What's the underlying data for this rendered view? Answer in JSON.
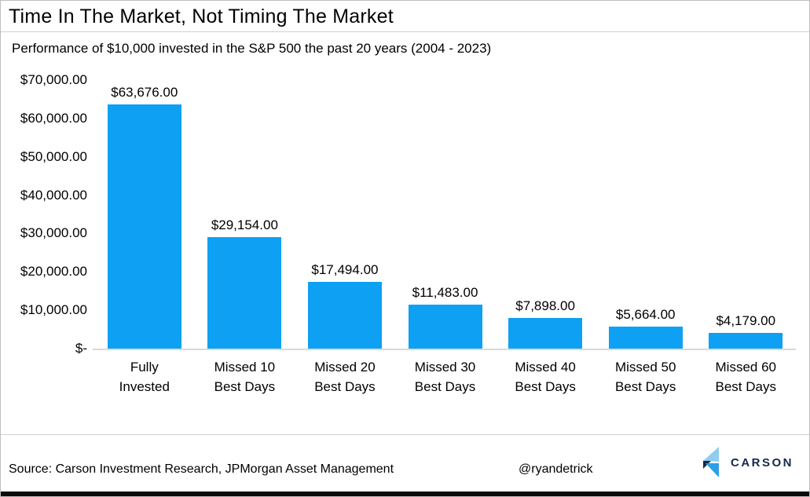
{
  "title": "Time In The Market, Not Timing The Market",
  "subtitle": "Performance of $10,000 invested in the S&P 500 the past 20 years (2004 - 2023)",
  "chart_data": {
    "type": "bar",
    "title": "Time In The Market, Not Timing The Market",
    "subtitle": "Performance of $10,000 invested in the S&P 500 the past 20 years (2004 - 2023)",
    "categories": [
      "Fully\nInvested",
      "Missed 10\nBest Days",
      "Missed 20\nBest Days",
      "Missed 30\nBest Days",
      "Missed 40\nBest Days",
      "Missed 50\nBest Days",
      "Missed 60\nBest Days"
    ],
    "values": [
      63676,
      29154,
      17494,
      11483,
      7898,
      5664,
      4179
    ],
    "value_labels": [
      "$63,676.00",
      "$29,154.00",
      "$17,494.00",
      "$11,483.00",
      "$7,898.00",
      "$5,664.00",
      "$4,179.00"
    ],
    "xlabel": "",
    "ylabel": "",
    "ylim": [
      0,
      70000
    ],
    "y_ticks": [
      {
        "value": 0,
        "label": "$-"
      },
      {
        "value": 10000,
        "label": "$10,000.00"
      },
      {
        "value": 20000,
        "label": "$20,000.00"
      },
      {
        "value": 30000,
        "label": "$30,000.00"
      },
      {
        "value": 40000,
        "label": "$40,000.00"
      },
      {
        "value": 50000,
        "label": "$50,000.00"
      },
      {
        "value": 60000,
        "label": "$60,000.00"
      },
      {
        "value": 70000,
        "label": "$70,000.00"
      }
    ],
    "grid": false,
    "legend": "none",
    "bar_color": "#0DA0F3"
  },
  "colors": {
    "bar": "#0DA0F3",
    "axis_line": "#d9d9d9",
    "separator": "#cfcfcf",
    "logo_light_blue": "#8FCDF1",
    "logo_mid_blue": "#2E9FE6",
    "logo_dark_navy": "#16284A",
    "bottom_strip": "#0a0a0a"
  },
  "footer": {
    "source": "Source: Carson Investment Research, JPMorgan Asset Management",
    "credit": "@ryandetrick",
    "logo_text": "CARSON"
  }
}
